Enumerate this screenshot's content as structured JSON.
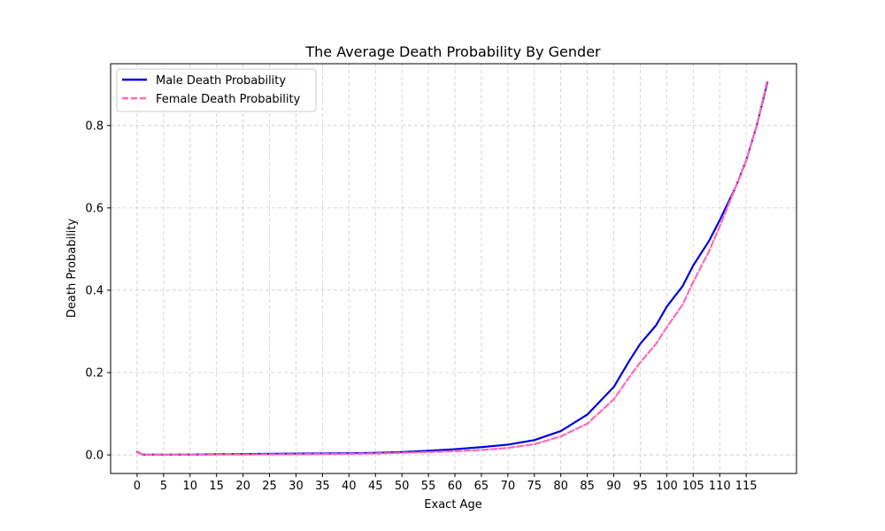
{
  "chart_data": {
    "type": "line",
    "title": "The Average Death Probability By Gender",
    "xlabel": "Exact Age",
    "ylabel": "Death Probability",
    "xlim": [
      -5,
      124.5
    ],
    "ylim": [
      -0.045,
      0.95
    ],
    "x_ticks": [
      0,
      5,
      10,
      15,
      20,
      25,
      30,
      35,
      40,
      45,
      50,
      55,
      60,
      65,
      70,
      75,
      80,
      85,
      90,
      95,
      100,
      105,
      110,
      115
    ],
    "y_ticks": [
      0.0,
      0.2,
      0.4,
      0.6,
      0.8
    ],
    "y_tick_labels": [
      "0.0",
      "0.2",
      "0.4",
      "0.6",
      "0.8"
    ],
    "grid": true,
    "legend_position": "top-left",
    "x": [
      0,
      1,
      5,
      10,
      15,
      20,
      25,
      30,
      35,
      40,
      45,
      50,
      55,
      60,
      65,
      70,
      75,
      80,
      85,
      90,
      93,
      95,
      98,
      100,
      103,
      105,
      108,
      110,
      113,
      115,
      117,
      119
    ],
    "series": [
      {
        "name": "Male Death Probability",
        "color": "#0000e0",
        "style": "solid",
        "values": [
          0.007,
          0.001,
          0.0008,
          0.0009,
          0.0015,
          0.002,
          0.0025,
          0.003,
          0.0035,
          0.004,
          0.005,
          0.007,
          0.01,
          0.014,
          0.019,
          0.025,
          0.036,
          0.058,
          0.098,
          0.165,
          0.23,
          0.27,
          0.315,
          0.36,
          0.41,
          0.46,
          0.52,
          0.57,
          0.65,
          0.715,
          0.8,
          0.905
        ]
      },
      {
        "name": "Female Death Probability",
        "color": "#ff69b4",
        "style": "dashed",
        "values": [
          0.006,
          0.001,
          0.0006,
          0.0006,
          0.0008,
          0.001,
          0.0012,
          0.0015,
          0.002,
          0.0025,
          0.0035,
          0.005,
          0.007,
          0.009,
          0.012,
          0.017,
          0.026,
          0.045,
          0.076,
          0.135,
          0.19,
          0.225,
          0.27,
          0.31,
          0.365,
          0.42,
          0.495,
          0.555,
          0.65,
          0.715,
          0.8,
          0.91
        ]
      }
    ]
  }
}
